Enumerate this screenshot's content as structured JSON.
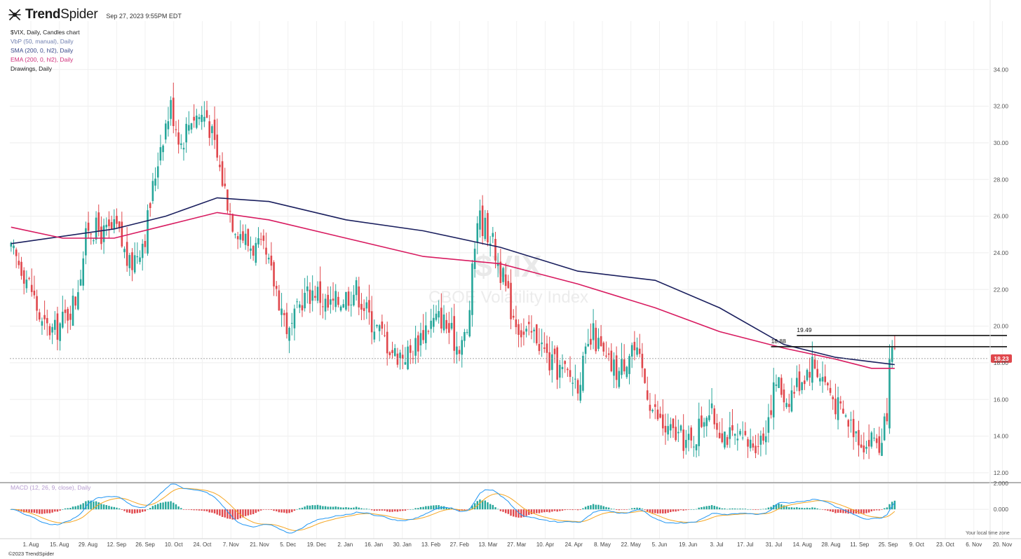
{
  "header": {
    "brand_trend": "Trend",
    "brand_spider": "Spider",
    "timestamp": "Sep 27, 2023 9:55PM EDT"
  },
  "legend": [
    {
      "label": "$VIX, Daily, Candles chart",
      "color": "#222222"
    },
    {
      "label": "VbP (50, manual), Daily",
      "color": "#6f7fb0"
    },
    {
      "label": "SMA (200, 0, hl2), Daily",
      "color": "#3a4a8a"
    },
    {
      "label": "EMA (200, 0, hl2), Daily",
      "color": "#d0307a"
    },
    {
      "label": "Drawings, Daily",
      "color": "#222222"
    }
  ],
  "watermark": {
    "symbol": "$VIX",
    "name": "CBOE Volatility Index"
  },
  "macd_label": "MACD (12, 26, 9, close), Daily",
  "copyright": "©2023 TrendSpider",
  "timezone_note": "Your local time zone",
  "last_price_badge": "18.23",
  "colors": {
    "up": "#26a69a",
    "down": "#e0474c",
    "sma": "#1a1f5e",
    "ema": "#d81b60",
    "macd_line": "#2196f3",
    "signal_line": "#f5a623",
    "badge": "#e0474c"
  },
  "chart_data": {
    "type": "candlestick",
    "title": "$VIX, Daily, Candles chart",
    "price_axis": {
      "ticks": [
        "34.00",
        "32.00",
        "30.00",
        "28.00",
        "26.00",
        "24.00",
        "22.00",
        "20.00",
        "18.00",
        "16.00",
        "14.00",
        "12.00"
      ],
      "ylim": [
        11.5,
        35.5
      ]
    },
    "macd_axis": {
      "ticks": [
        "2.000",
        "0.000"
      ],
      "range": [
        -2.2,
        2.0
      ]
    },
    "x_ticks": [
      "1. Aug",
      "15. Aug",
      "29. Aug",
      "12. Sep",
      "26. Sep",
      "10. Oct",
      "24. Oct",
      "7. Nov",
      "21. Nov",
      "5. Dec",
      "19. Dec",
      "2. Jan",
      "16. Jan",
      "30. Jan",
      "13. Feb",
      "27. Feb",
      "13. Mar",
      "27. Mar",
      "10. Apr",
      "24. Apr",
      "8. May",
      "22. May",
      "5. Jun",
      "19. Jun",
      "3. Jul",
      "17. Jul",
      "31. Jul",
      "14. Aug",
      "28. Aug",
      "11. Sep",
      "25. Sep",
      "9. Oct",
      "23. Oct",
      "6. Nov",
      "20. Nov"
    ],
    "close_path": [
      [
        0,
        24.0
      ],
      [
        4,
        23.3
      ],
      [
        8,
        22.0
      ],
      [
        12,
        20.0
      ],
      [
        17,
        19.7
      ],
      [
        21,
        20.5
      ],
      [
        25,
        21.5
      ],
      [
        30,
        25.5
      ],
      [
        36,
        25.0
      ],
      [
        41,
        25.3
      ],
      [
        46,
        23.2
      ],
      [
        52,
        25.0
      ],
      [
        58,
        30.0
      ],
      [
        62,
        32.0
      ],
      [
        66,
        30.0
      ],
      [
        70,
        31.5
      ],
      [
        76,
        31.5
      ],
      [
        82,
        28.0
      ],
      [
        86,
        25.8
      ],
      [
        92,
        24.5
      ],
      [
        98,
        24.0
      ],
      [
        103,
        22.0
      ],
      [
        108,
        19.5
      ],
      [
        113,
        21.5
      ],
      [
        118,
        22.0
      ],
      [
        123,
        21.0
      ],
      [
        128,
        21.5
      ],
      [
        134,
        22.0
      ],
      [
        139,
        20.5
      ],
      [
        144,
        19.5
      ],
      [
        149,
        18.5
      ],
      [
        155,
        18.5
      ],
      [
        161,
        20.0
      ],
      [
        167,
        20.5
      ],
      [
        173,
        19.0
      ],
      [
        177,
        19.5
      ],
      [
        181,
        26.0
      ],
      [
        186,
        25.0
      ],
      [
        190,
        23.0
      ],
      [
        194,
        21.0
      ],
      [
        199,
        19.5
      ],
      [
        204,
        19.5
      ],
      [
        209,
        18.0
      ],
      [
        214,
        17.5
      ],
      [
        220,
        17.0
      ],
      [
        226,
        19.5
      ],
      [
        231,
        18.0
      ],
      [
        236,
        17.5
      ],
      [
        241,
        19.0
      ],
      [
        245,
        17.5
      ],
      [
        249,
        15.5
      ],
      [
        254,
        14.3
      ],
      [
        259,
        14.0
      ],
      [
        264,
        13.5
      ],
      [
        270,
        15.5
      ],
      [
        275,
        14.5
      ],
      [
        280,
        13.8
      ],
      [
        286,
        13.5
      ],
      [
        292,
        14.0
      ],
      [
        297,
        17.0
      ],
      [
        301,
        16.0
      ],
      [
        306,
        17.0
      ],
      [
        311,
        18.0
      ],
      [
        316,
        17.0
      ],
      [
        321,
        15.5
      ],
      [
        327,
        14.5
      ],
      [
        332,
        13.5
      ],
      [
        335,
        14.0
      ],
      [
        338,
        13.3
      ],
      [
        340,
        15.5
      ],
      [
        341,
        17.5
      ],
      [
        342,
        18.5
      ],
      [
        343,
        18.2
      ]
    ],
    "sma200": [
      [
        0,
        24.5
      ],
      [
        40,
        25.3
      ],
      [
        60,
        26.0
      ],
      [
        80,
        27.0
      ],
      [
        100,
        26.8
      ],
      [
        130,
        25.8
      ],
      [
        160,
        25.2
      ],
      [
        190,
        24.3
      ],
      [
        220,
        23.0
      ],
      [
        250,
        22.5
      ],
      [
        275,
        21.0
      ],
      [
        300,
        19.0
      ],
      [
        320,
        18.3
      ],
      [
        343,
        17.9
      ]
    ],
    "ema200": [
      [
        0,
        25.4
      ],
      [
        20,
        24.8
      ],
      [
        40,
        24.8
      ],
      [
        60,
        25.5
      ],
      [
        80,
        26.2
      ],
      [
        100,
        25.8
      ],
      [
        130,
        24.8
      ],
      [
        160,
        23.8
      ],
      [
        190,
        23.4
      ],
      [
        220,
        22.3
      ],
      [
        250,
        21.0
      ],
      [
        275,
        19.7
      ],
      [
        300,
        18.8
      ],
      [
        320,
        18.2
      ],
      [
        334,
        17.7
      ],
      [
        343,
        17.7
      ]
    ],
    "last_price": 18.23,
    "levels": [
      {
        "label": "19.49",
        "value": 19.49,
        "from_index": 305,
        "to_index": 380
      },
      {
        "label": "18.88",
        "value": 18.88,
        "from_index": 295,
        "to_index": 380
      }
    ],
    "total_bars": 380,
    "last_bar_index": 343
  }
}
